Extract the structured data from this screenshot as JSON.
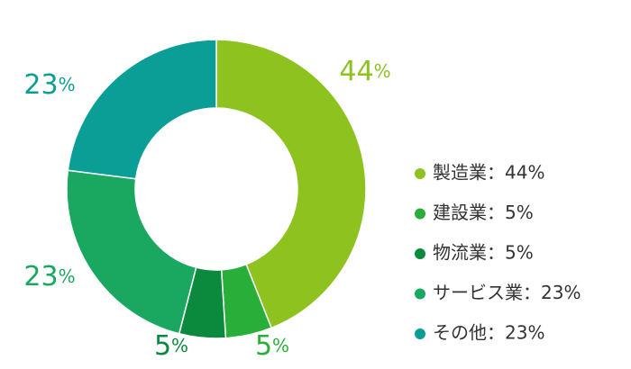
{
  "chart_data": {
    "type": "donut",
    "categories": [
      "製造業：44%",
      "建設業：5%",
      "物流業：5%",
      "サービス業：23%",
      "その他：23%"
    ],
    "values": [
      44,
      5,
      5,
      23,
      23
    ],
    "value_labels": [
      "44%",
      "5%",
      "5%",
      "23%",
      "23%"
    ],
    "colors": [
      "#8dc21f",
      "#2aae3a",
      "#0b8a3e",
      "#1aa860",
      "#0b9e96"
    ]
  }
}
